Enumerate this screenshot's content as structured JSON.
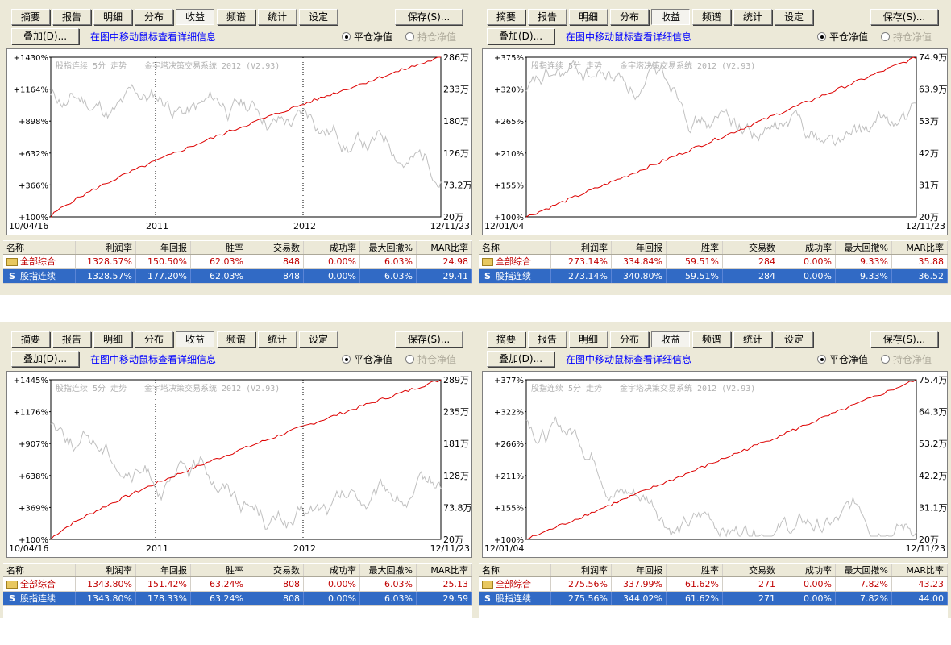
{
  "toolbar": {
    "tabs": [
      "摘要",
      "报告",
      "明细",
      "分布",
      "收益",
      "频谱",
      "统计",
      "设定"
    ],
    "save_label": "保存(S)...",
    "overlay_label": "叠加(D)...",
    "hint": "在图中移动鼠标查看详细信息",
    "radio_on": "平仓净值",
    "radio_off": "持仓净值"
  },
  "columns": [
    "名称",
    "利润率",
    "年回报",
    "胜率",
    "交易数",
    "成功率",
    "最大回撤%",
    "MAR比率"
  ],
  "colors": {
    "equity_line": "#dd0000",
    "price_line": "#c0c0c0",
    "selected_row": "#316ac5"
  },
  "watermark": [
    "股指连续 5分 走势",
    "金宇塔决策交易系统 2012 (V2.93)"
  ],
  "panels": [
    {
      "left_axis": [
        "+1430%",
        "+1164%",
        "+898%",
        "+632%",
        "+366%",
        "+100%"
      ],
      "right_axis": [
        "286万",
        "233万",
        "180万",
        "126万",
        "73.2万",
        "20万"
      ],
      "x_start": "10/04/16",
      "x_end": "12/11/23",
      "x_marks": [
        "2011",
        "2012"
      ],
      "rows": [
        {
          "name": "全部综合",
          "icon": "folder-icon",
          "vals": [
            "1328.57%",
            "150.50%",
            "62.03%",
            "848",
            "0.00%",
            "6.03%",
            "24.98"
          ]
        },
        {
          "name": "股指连续",
          "icon": "s-icon",
          "vals": [
            "1328.57%",
            "177.20%",
            "62.03%",
            "848",
            "0.00%",
            "6.03%",
            "29.41"
          ]
        }
      ]
    },
    {
      "left_axis": [
        "+375%",
        "+320%",
        "+265%",
        "+210%",
        "+155%",
        "+100%"
      ],
      "right_axis": [
        "74.9万",
        "63.9万",
        "53万",
        "42万",
        "31万",
        "20万"
      ],
      "x_start": "12/01/04",
      "x_end": "12/11/23",
      "x_marks": [],
      "rows": [
        {
          "name": "全部综合",
          "icon": "folder-icon",
          "vals": [
            "273.14%",
            "334.84%",
            "59.51%",
            "284",
            "0.00%",
            "9.33%",
            "35.88"
          ]
        },
        {
          "name": "股指连续",
          "icon": "s-icon",
          "vals": [
            "273.14%",
            "340.80%",
            "59.51%",
            "284",
            "0.00%",
            "9.33%",
            "36.52"
          ]
        }
      ]
    },
    {
      "left_axis": [
        "+1445%",
        "+1176%",
        "+907%",
        "+638%",
        "+369%",
        "+100%"
      ],
      "right_axis": [
        "289万",
        "235万",
        "181万",
        "128万",
        "73.8万",
        "20万"
      ],
      "x_start": "10/04/16",
      "x_end": "12/11/23",
      "x_marks": [
        "2011",
        "2012"
      ],
      "rows": [
        {
          "name": "全部综合",
          "icon": "folder-icon",
          "vals": [
            "1343.80%",
            "151.42%",
            "63.24%",
            "808",
            "0.00%",
            "6.03%",
            "25.13"
          ]
        },
        {
          "name": "股指连续",
          "icon": "s-icon",
          "vals": [
            "1343.80%",
            "178.33%",
            "63.24%",
            "808",
            "0.00%",
            "6.03%",
            "29.59"
          ]
        }
      ]
    },
    {
      "left_axis": [
        "+377%",
        "+322%",
        "+266%",
        "+211%",
        "+155%",
        "+100%"
      ],
      "right_axis": [
        "75.4万",
        "64.3万",
        "53.2万",
        "42.2万",
        "31.1万",
        "20万"
      ],
      "x_start": "12/01/04",
      "x_end": "12/11/23",
      "x_marks": [],
      "rows": [
        {
          "name": "全部综合",
          "icon": "folder-icon",
          "vals": [
            "275.56%",
            "337.99%",
            "61.62%",
            "271",
            "0.00%",
            "7.82%",
            "43.23"
          ]
        },
        {
          "name": "股指连续",
          "icon": "s-icon",
          "vals": [
            "275.56%",
            "344.02%",
            "61.62%",
            "271",
            "0.00%",
            "7.82%",
            "44.00"
          ]
        }
      ]
    }
  ]
}
